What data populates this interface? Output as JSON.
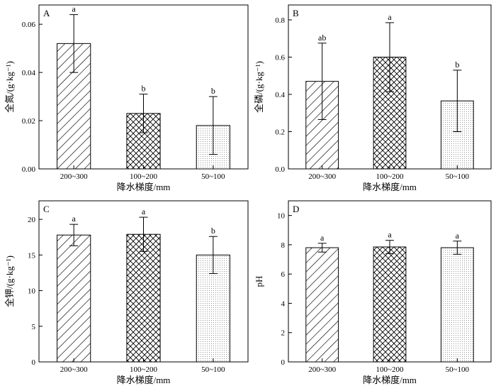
{
  "chart_data": [
    {
      "type": "bar",
      "panel_label": "A",
      "categories": [
        "200~300",
        "100~200",
        "50~100"
      ],
      "values": [
        0.052,
        0.023,
        0.018
      ],
      "errors": [
        0.012,
        0.008,
        0.012
      ],
      "sig_letters": [
        "a",
        "b",
        "b"
      ],
      "patterns": [
        "diagonal",
        "crosshatch",
        "dots"
      ],
      "xlabel": "降水梯度/mm",
      "ylabel": "全氮/(g·kg⁻¹)",
      "ylim": [
        0,
        0.068
      ],
      "yticks": [
        0,
        0.02,
        0.04,
        0.06
      ],
      "ytick_labels": [
        "0.00",
        "0.02",
        "0.04",
        "0.06"
      ]
    },
    {
      "type": "bar",
      "panel_label": "B",
      "categories": [
        "200~300",
        "100~200",
        "50~100"
      ],
      "values": [
        0.47,
        0.6,
        0.365
      ],
      "errors": [
        0.205,
        0.185,
        0.165
      ],
      "sig_letters": [
        "ab",
        "a",
        "b"
      ],
      "patterns": [
        "diagonal",
        "crosshatch",
        "dots"
      ],
      "xlabel": "降水梯度/mm",
      "ylabel": "全磷/(g·kg⁻¹)",
      "ylim": [
        0,
        0.88
      ],
      "yticks": [
        0,
        0.2,
        0.4,
        0.6,
        0.8
      ],
      "ytick_labels": [
        "0.0",
        "0.2",
        "0.4",
        "0.6",
        "0.8"
      ]
    },
    {
      "type": "bar",
      "panel_label": "C",
      "categories": [
        "200~300",
        "100~200",
        "50~100"
      ],
      "values": [
        17.8,
        17.9,
        15.0
      ],
      "errors": [
        1.5,
        2.4,
        2.6
      ],
      "sig_letters": [
        "a",
        "a",
        "b"
      ],
      "patterns": [
        "diagonal",
        "crosshatch",
        "dots"
      ],
      "xlabel": "降水梯度/mm",
      "ylabel": "全钾/(g·kg⁻¹)",
      "ylim": [
        0,
        22.6
      ],
      "yticks": [
        0,
        5,
        10,
        15,
        20
      ],
      "ytick_labels": [
        "0",
        "5",
        "10",
        "15",
        "20"
      ]
    },
    {
      "type": "bar",
      "panel_label": "D",
      "categories": [
        "200~300",
        "100~200",
        "50~100"
      ],
      "values": [
        7.8,
        7.85,
        7.8
      ],
      "errors": [
        0.3,
        0.45,
        0.45
      ],
      "sig_letters": [
        "a",
        "a",
        "a"
      ],
      "patterns": [
        "diagonal",
        "crosshatch",
        "dots"
      ],
      "xlabel": "降水梯度/mm",
      "ylabel": "pH",
      "ylim": [
        0,
        11
      ],
      "yticks": [
        0,
        2,
        4,
        6,
        8,
        10
      ],
      "ytick_labels": [
        "0",
        "2",
        "4",
        "6",
        "8",
        "10"
      ]
    }
  ]
}
